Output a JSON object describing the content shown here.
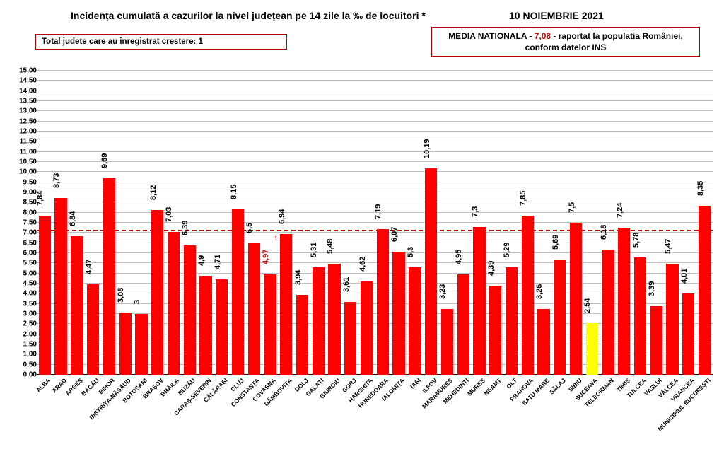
{
  "title": "Incidența cumulată a cazurilor la nivel județean pe 14 zile la ‰ de locuitori *",
  "date": "10 NOIEMBRIE 2021",
  "note_box": "Total judete care au inregistrat crestere: 1",
  "media_box": {
    "prefix": "MEDIA NATIONALA - ",
    "value": "7,08",
    "suffix": " -  raportat la populatia României, conform datelor INS"
  },
  "chart": {
    "type": "bar",
    "ymin": 0,
    "ymax": 15,
    "ytick_step": 0.5,
    "grid_color": "#bfbfbf",
    "default_bar_color": "#ff0000",
    "label_fontsize": 11,
    "xlabel_fontsize": 8.5,
    "reference_line": {
      "value": 7.08,
      "color": "#c00000",
      "dash": true
    },
    "series": [
      {
        "name": "ALBA",
        "value": 7.84,
        "label": "7,84"
      },
      {
        "name": "ARAD",
        "value": 8.73,
        "label": "8,73"
      },
      {
        "name": "ARGEȘ",
        "value": 6.84,
        "label": "6,84"
      },
      {
        "name": "BACĂU",
        "value": 4.47,
        "label": "4,47"
      },
      {
        "name": "BIHOR",
        "value": 9.69,
        "label": "9,69"
      },
      {
        "name": "BISTRIȚA-NĂSĂUD",
        "value": 3.08,
        "label": "3,08"
      },
      {
        "name": "BOTOȘANI",
        "value": 3.0,
        "label": "3"
      },
      {
        "name": "BRAȘOV",
        "value": 8.12,
        "label": "8,12"
      },
      {
        "name": "BRĂILA",
        "value": 7.03,
        "label": "7,03"
      },
      {
        "name": "BUZĂU",
        "value": 6.39,
        "label": "6,39"
      },
      {
        "name": "CARAȘ-SEVERIN",
        "value": 4.9,
        "label": "4,9"
      },
      {
        "name": "CĂLĂRAȘI",
        "value": 4.71,
        "label": "4,71"
      },
      {
        "name": "CLUJ",
        "value": 8.15,
        "label": "8,15"
      },
      {
        "name": "CONSTANȚA",
        "value": 6.5,
        "label": "6,5"
      },
      {
        "name": "COVASNA",
        "value": 4.97,
        "label": "4,97",
        "label_color": "#c00000",
        "arrow": true
      },
      {
        "name": "DÂMBOVIȚA",
        "value": 6.94,
        "label": "6,94"
      },
      {
        "name": "DOLJ",
        "value": 3.94,
        "label": "3,94"
      },
      {
        "name": "GALAȚI",
        "value": 5.31,
        "label": "5,31"
      },
      {
        "name": "GIURGIU",
        "value": 5.48,
        "label": "5,48"
      },
      {
        "name": "GORJ",
        "value": 3.61,
        "label": "3,61"
      },
      {
        "name": "HARGHITA",
        "value": 4.62,
        "label": "4,62"
      },
      {
        "name": "HUNEDOARA",
        "value": 7.19,
        "label": "7,19"
      },
      {
        "name": "IALOMIȚA",
        "value": 6.07,
        "label": "6,07"
      },
      {
        "name": "IAȘI",
        "value": 5.3,
        "label": "5,3"
      },
      {
        "name": "ILFOV",
        "value": 10.19,
        "label": "10,19"
      },
      {
        "name": "MARAMUREȘ",
        "value": 3.23,
        "label": "3,23"
      },
      {
        "name": "MEHEDINȚI",
        "value": 4.95,
        "label": "4,95"
      },
      {
        "name": "MUREȘ",
        "value": 7.3,
        "label": "7,3"
      },
      {
        "name": "NEAMȚ",
        "value": 4.39,
        "label": "4,39"
      },
      {
        "name": "OLT",
        "value": 5.29,
        "label": "5,29"
      },
      {
        "name": "PRAHOVA",
        "value": 7.85,
        "label": "7,85"
      },
      {
        "name": "SATU MARE",
        "value": 3.26,
        "label": "3,26"
      },
      {
        "name": "SĂLAJ",
        "value": 5.69,
        "label": "5,69"
      },
      {
        "name": "SIBIU",
        "value": 7.5,
        "label": "7,5"
      },
      {
        "name": "SUCEAVA",
        "value": 2.54,
        "label": "2,54",
        "bar_color": "#ffff00"
      },
      {
        "name": "TELEORMAN",
        "value": 6.18,
        "label": "6,18"
      },
      {
        "name": "TIMIȘ",
        "value": 7.24,
        "label": "7,24"
      },
      {
        "name": "TULCEA",
        "value": 5.78,
        "label": "5,78"
      },
      {
        "name": "VASLUI",
        "value": 3.39,
        "label": "3,39"
      },
      {
        "name": "VÂLCEA",
        "value": 5.47,
        "label": "5,47"
      },
      {
        "name": "VRANCEA",
        "value": 4.01,
        "label": "4,01"
      },
      {
        "name": "MUNICIPIUL BUCUREȘTI",
        "value": 8.35,
        "label": "8,35"
      }
    ]
  }
}
